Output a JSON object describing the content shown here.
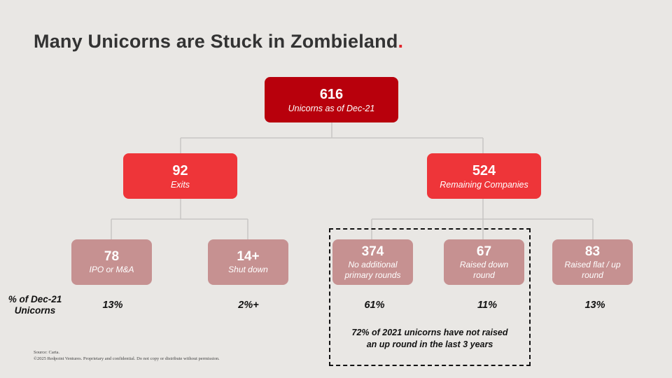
{
  "title": {
    "text": "Many Unicorns are Stuck in Zombieland",
    "dot": "."
  },
  "root": {
    "value": "616",
    "label": "Unicorns as of Dec-21"
  },
  "level1": [
    {
      "value": "92",
      "label": "Exits"
    },
    {
      "value": "524",
      "label": "Remaining Companies"
    }
  ],
  "level2": [
    {
      "value": "78",
      "label": "IPO or M&A",
      "pct": "13%"
    },
    {
      "value": "14+",
      "label": "Shut down",
      "pct": "2%+"
    },
    {
      "value": "374",
      "label_line1": "No additional",
      "label_line2": "primary rounds",
      "pct": "61%"
    },
    {
      "value": "67",
      "label_line1": "Raised down",
      "label_line2": "round",
      "pct": "11%"
    },
    {
      "value": "83",
      "label_line1": "Raised flat / up",
      "label_line2": "round",
      "pct": "13%"
    }
  ],
  "pct_row_label": {
    "line1": "% of Dec-21",
    "line2": "Unicorns"
  },
  "highlight_note": {
    "line1": "72% of 2021 unicorns have not raised",
    "line2": "an up round in the last 3 years"
  },
  "footer": {
    "source": "Source: Carta.",
    "copyright": "©2025 Redpoint Ventures. Proprietary and confidential. Do not copy or distribute without permission."
  },
  "colors": {
    "background": "#e9e7e4",
    "root": "#b8000c",
    "level1": "#ee3539",
    "level2": "#c69191",
    "accent_dot": "#e0262c",
    "connector": "#c8c6c3"
  }
}
